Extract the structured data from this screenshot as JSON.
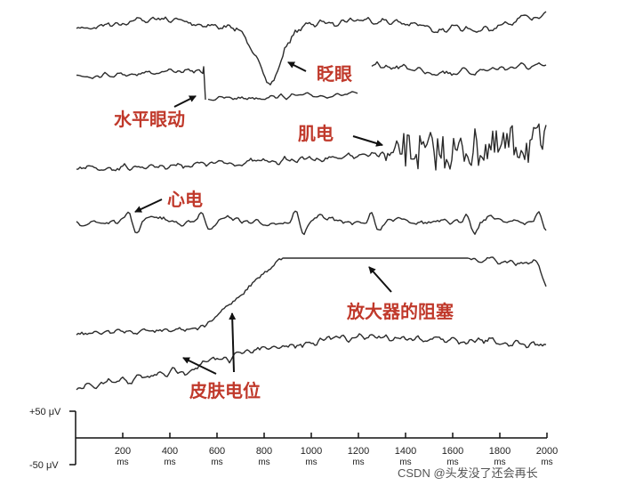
{
  "labels": {
    "blink": "眨眼",
    "horizontal_eye_movement": "水平眼动",
    "muscle": "肌电",
    "heart": "心电",
    "amplifier_block": "放大器的阻塞",
    "skin_potential": "皮肤电位"
  },
  "axis": {
    "y_top_label": "+50 μV",
    "y_bottom_label": "-50 μV",
    "x_ticks": [
      "200",
      "400",
      "600",
      "800",
      "1000",
      "1200",
      "1400",
      "1600",
      "1800",
      "2000"
    ],
    "x_unit": "ms"
  },
  "watermark": "CSDN @头发没了还会再长",
  "colors": {
    "annotation": "#c0392b",
    "trace": "#2b2b2b"
  }
}
